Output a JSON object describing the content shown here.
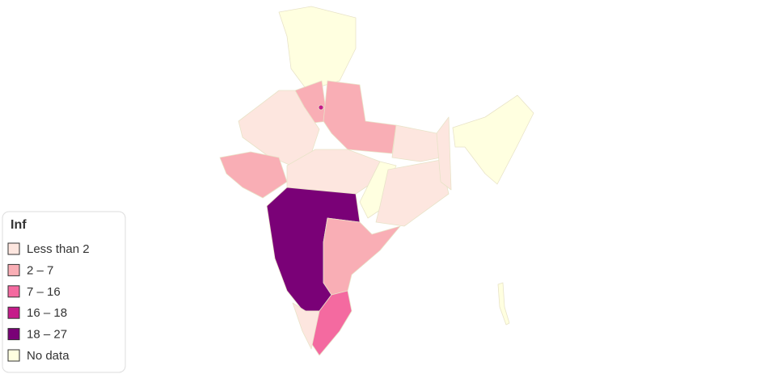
{
  "legend": {
    "title": "Inf",
    "items": [
      {
        "label": "Less than 2",
        "color": "#fde6df"
      },
      {
        "label": "2 – 7",
        "color": "#f9aeb5"
      },
      {
        "label": "7 – 16",
        "color": "#f46aa0"
      },
      {
        "label": "16 – 18",
        "color": "#c51b8a"
      },
      {
        "label": "18 – 27",
        "color": "#7a0177"
      },
      {
        "label": "No data",
        "color": "#ffffe0"
      }
    ]
  }
}
